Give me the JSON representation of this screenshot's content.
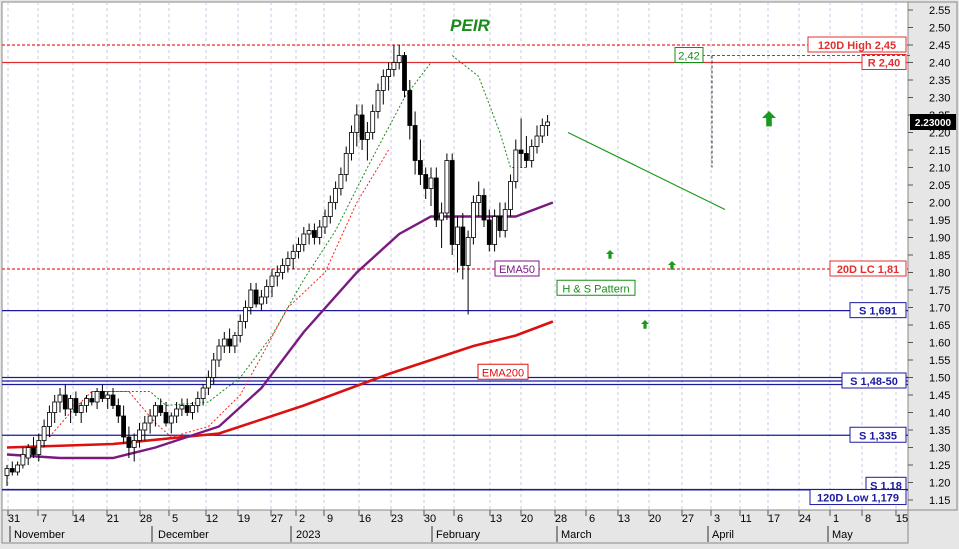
{
  "chart_data": {
    "type": "candlestick",
    "title": "PEIR",
    "ylim": [
      1.15,
      2.55
    ],
    "y_ticks": [
      "1.15",
      "1.20",
      "1.25",
      "1.30",
      "1.35",
      "1.40",
      "1.45",
      "1.50",
      "1.55",
      "1.60",
      "1.65",
      "1.70",
      "1.75",
      "1.80",
      "1.85",
      "1.90",
      "1.95",
      "2.00",
      "2.05",
      "2.10",
      "2.15",
      "2.20",
      "2.25",
      "2.30",
      "2.35",
      "2.40",
      "2.45",
      "2.50",
      "2.55"
    ],
    "x_day_labels": [
      "31",
      "7",
      "14",
      "21",
      "28",
      "5",
      "12",
      "19",
      "27",
      "2",
      "9",
      "16",
      "23",
      "30",
      "6",
      "13",
      "20",
      "28",
      "6",
      "13",
      "20",
      "27",
      "3",
      "11",
      "17",
      "24",
      "1",
      "8",
      "15"
    ],
    "x_month_labels": [
      "November",
      "December",
      "2023",
      "February",
      "March",
      "April",
      "May"
    ],
    "last_price": "2.23000",
    "horizontal_levels": [
      {
        "label": "120D High 2,45",
        "value": 2.45,
        "color": "#e03030",
        "style": "dashed"
      },
      {
        "label": "R 2,40",
        "value": 2.4,
        "color": "#e03030",
        "style": "solid"
      },
      {
        "label": "20D LC 1,81",
        "value": 1.81,
        "color": "#e03030",
        "style": "dashed"
      },
      {
        "label": "S 1,691",
        "value": 1.691,
        "color": "#1a1aa0",
        "style": "solid"
      },
      {
        "label": "S 1,48-50",
        "value": 1.49,
        "color": "#1a1aa0",
        "style": "solid"
      },
      {
        "label": "S 1,335",
        "value": 1.335,
        "color": "#1a1aa0",
        "style": "solid"
      },
      {
        "label": "S 1,18",
        "value": 1.18,
        "color": "#1a1aa0",
        "style": "solid"
      },
      {
        "label": "120D Low 1,179",
        "value": 1.179,
        "color": "#1a1aa0",
        "style": "solid"
      }
    ],
    "annotations": {
      "peak_label": "2,42",
      "pattern_label": "H & S Pattern",
      "ema50_label": "EMA50",
      "ema200_label": "EMA200"
    },
    "ohlc": [
      [
        1.22,
        1.25,
        1.19,
        1.24
      ],
      [
        1.24,
        1.26,
        1.22,
        1.23
      ],
      [
        1.23,
        1.26,
        1.22,
        1.25
      ],
      [
        1.25,
        1.3,
        1.24,
        1.28
      ],
      [
        1.27,
        1.31,
        1.25,
        1.3
      ],
      [
        1.3,
        1.33,
        1.27,
        1.28
      ],
      [
        1.28,
        1.34,
        1.26,
        1.32
      ],
      [
        1.32,
        1.38,
        1.3,
        1.36
      ],
      [
        1.36,
        1.42,
        1.33,
        1.4
      ],
      [
        1.4,
        1.45,
        1.37,
        1.43
      ],
      [
        1.43,
        1.47,
        1.4,
        1.45
      ],
      [
        1.45,
        1.48,
        1.39,
        1.41
      ],
      [
        1.41,
        1.45,
        1.37,
        1.44
      ],
      [
        1.44,
        1.46,
        1.39,
        1.4
      ],
      [
        1.4,
        1.43,
        1.37,
        1.42
      ],
      [
        1.42,
        1.45,
        1.4,
        1.44
      ],
      [
        1.44,
        1.46,
        1.42,
        1.43
      ],
      [
        1.43,
        1.47,
        1.41,
        1.46
      ],
      [
        1.46,
        1.48,
        1.43,
        1.44
      ],
      [
        1.44,
        1.46,
        1.41,
        1.45
      ],
      [
        1.45,
        1.47,
        1.41,
        1.42
      ],
      [
        1.42,
        1.44,
        1.37,
        1.39
      ],
      [
        1.39,
        1.42,
        1.31,
        1.33
      ],
      [
        1.33,
        1.36,
        1.27,
        1.3
      ],
      [
        1.3,
        1.34,
        1.26,
        1.32
      ],
      [
        1.32,
        1.37,
        1.3,
        1.35
      ],
      [
        1.35,
        1.39,
        1.32,
        1.37
      ],
      [
        1.37,
        1.41,
        1.34,
        1.39
      ],
      [
        1.39,
        1.43,
        1.36,
        1.42
      ],
      [
        1.42,
        1.44,
        1.39,
        1.4
      ],
      [
        1.4,
        1.43,
        1.36,
        1.37
      ],
      [
        1.37,
        1.4,
        1.34,
        1.39
      ],
      [
        1.39,
        1.43,
        1.37,
        1.41
      ],
      [
        1.41,
        1.44,
        1.39,
        1.42
      ],
      [
        1.42,
        1.44,
        1.39,
        1.4
      ],
      [
        1.4,
        1.43,
        1.38,
        1.42
      ],
      [
        1.42,
        1.46,
        1.4,
        1.44
      ],
      [
        1.44,
        1.48,
        1.42,
        1.47
      ],
      [
        1.47,
        1.52,
        1.45,
        1.5
      ],
      [
        1.5,
        1.57,
        1.48,
        1.55
      ],
      [
        1.55,
        1.61,
        1.53,
        1.59
      ],
      [
        1.59,
        1.63,
        1.57,
        1.61
      ],
      [
        1.61,
        1.64,
        1.57,
        1.59
      ],
      [
        1.59,
        1.63,
        1.57,
        1.62
      ],
      [
        1.62,
        1.68,
        1.6,
        1.66
      ],
      [
        1.66,
        1.72,
        1.64,
        1.7
      ],
      [
        1.7,
        1.77,
        1.68,
        1.75
      ],
      [
        1.75,
        1.77,
        1.7,
        1.71
      ],
      [
        1.71,
        1.75,
        1.69,
        1.73
      ],
      [
        1.73,
        1.78,
        1.71,
        1.76
      ],
      [
        1.76,
        1.81,
        1.73,
        1.79
      ],
      [
        1.79,
        1.82,
        1.76,
        1.8
      ],
      [
        1.8,
        1.84,
        1.78,
        1.82
      ],
      [
        1.82,
        1.86,
        1.8,
        1.84
      ],
      [
        1.84,
        1.88,
        1.81,
        1.86
      ],
      [
        1.86,
        1.9,
        1.84,
        1.88
      ],
      [
        1.88,
        1.93,
        1.86,
        1.91
      ],
      [
        1.91,
        1.94,
        1.88,
        1.92
      ],
      [
        1.92,
        1.94,
        1.88,
        1.9
      ],
      [
        1.9,
        1.95,
        1.88,
        1.93
      ],
      [
        1.93,
        1.98,
        1.91,
        1.96
      ],
      [
        1.96,
        2.02,
        1.94,
        2.0
      ],
      [
        2.0,
        2.06,
        1.98,
        2.04
      ],
      [
        2.04,
        2.1,
        2.02,
        2.08
      ],
      [
        2.08,
        2.16,
        2.06,
        2.14
      ],
      [
        2.14,
        2.22,
        2.12,
        2.2
      ],
      [
        2.2,
        2.28,
        2.16,
        2.25
      ],
      [
        2.25,
        2.28,
        2.15,
        2.18
      ],
      [
        2.18,
        2.23,
        2.12,
        2.2
      ],
      [
        2.2,
        2.28,
        2.18,
        2.26
      ],
      [
        2.26,
        2.34,
        2.24,
        2.32
      ],
      [
        2.32,
        2.38,
        2.28,
        2.36
      ],
      [
        2.36,
        2.4,
        2.32,
        2.38
      ],
      [
        2.38,
        2.45,
        2.36,
        2.4
      ],
      [
        2.4,
        2.45,
        2.38,
        2.42
      ],
      [
        2.42,
        2.43,
        2.3,
        2.32
      ],
      [
        2.32,
        2.35,
        2.18,
        2.22
      ],
      [
        2.22,
        2.26,
        2.08,
        2.12
      ],
      [
        2.12,
        2.18,
        2.05,
        2.08
      ],
      [
        2.08,
        2.1,
        2.01,
        2.04
      ],
      [
        2.04,
        2.1,
        1.99,
        2.07
      ],
      [
        2.07,
        2.1,
        1.93,
        1.95
      ],
      [
        1.95,
        2.0,
        1.87,
        1.97
      ],
      [
        1.97,
        2.14,
        1.95,
        2.12
      ],
      [
        2.12,
        2.14,
        1.85,
        1.88
      ],
      [
        1.88,
        1.96,
        1.8,
        1.93
      ],
      [
        1.93,
        1.97,
        1.78,
        1.82
      ],
      [
        1.82,
        1.92,
        1.68,
        1.9
      ],
      [
        1.9,
        2.02,
        1.88,
        2.0
      ],
      [
        2.0,
        2.06,
        1.96,
        2.02
      ],
      [
        2.02,
        2.04,
        1.93,
        1.95
      ],
      [
        1.95,
        1.98,
        1.86,
        1.88
      ],
      [
        1.88,
        1.98,
        1.86,
        1.96
      ],
      [
        1.96,
        2.0,
        1.9,
        1.92
      ],
      [
        1.92,
        2.0,
        1.9,
        1.98
      ],
      [
        1.98,
        2.08,
        1.96,
        2.06
      ],
      [
        2.06,
        2.18,
        2.04,
        2.15
      ],
      [
        2.15,
        2.24,
        2.1,
        2.14
      ],
      [
        2.14,
        2.19,
        2.1,
        2.12
      ],
      [
        2.12,
        2.18,
        2.1,
        2.16
      ],
      [
        2.16,
        2.22,
        2.14,
        2.19
      ],
      [
        2.19,
        2.24,
        2.17,
        2.22
      ],
      [
        2.22,
        2.25,
        2.19,
        2.23
      ]
    ],
    "ema50": [
      [
        0,
        1.28
      ],
      [
        10,
        1.27
      ],
      [
        20,
        1.27
      ],
      [
        28,
        1.3
      ],
      [
        40,
        1.36
      ],
      [
        48,
        1.47
      ],
      [
        56,
        1.63
      ],
      [
        66,
        1.8
      ],
      [
        74,
        1.91
      ],
      [
        80,
        1.96
      ],
      [
        88,
        1.96
      ],
      [
        96,
        1.96
      ],
      [
        103,
        2.0
      ]
    ],
    "ema200": [
      [
        0,
        1.3
      ],
      [
        20,
        1.31
      ],
      [
        40,
        1.34
      ],
      [
        56,
        1.42
      ],
      [
        72,
        1.51
      ],
      [
        80,
        1.55
      ],
      [
        88,
        1.59
      ],
      [
        96,
        1.62
      ],
      [
        103,
        1.66
      ]
    ]
  }
}
